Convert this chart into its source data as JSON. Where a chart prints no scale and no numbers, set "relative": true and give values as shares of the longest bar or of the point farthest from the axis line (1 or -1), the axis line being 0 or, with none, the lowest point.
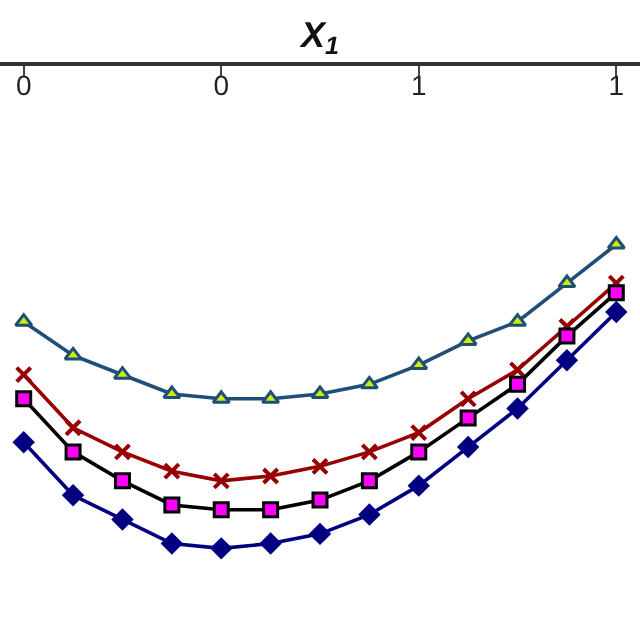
{
  "chart_data": {
    "type": "line",
    "xlabel": "X$_{1}$",
    "relative": true,
    "x": [
      -0.5,
      -0.375,
      -0.25,
      -0.125,
      0,
      0.125,
      0.25,
      0.375,
      0.5,
      0.625,
      0.75,
      0.875,
      1.0
    ],
    "xlim": [
      -0.56,
      1.06
    ],
    "xticks": [
      {
        "value": -0.5,
        "label": "0"
      },
      {
        "value": 0,
        "label": "0"
      },
      {
        "value": 0.5,
        "label": "1"
      },
      {
        "value": 1.0,
        "label": "1"
      }
    ],
    "series": [
      {
        "color": "#1f4e79",
        "marker": "triangle",
        "colors": [
          "#ccee00",
          "#ccee00",
          "#ccee00",
          "#ccee00",
          "#ccee00",
          "#ccee00",
          "#ccee00",
          "#ccee00",
          "#ccee00",
          "#ccee00",
          "#ccee00",
          "#ccee00",
          "#ccee00"
        ],
        "values": [
          -0.53,
          -0.6,
          -0.64,
          -0.68,
          -0.69,
          -0.69,
          -0.68,
          -0.66,
          -0.62,
          -0.57,
          -0.53,
          -0.45,
          -0.37
        ]
      },
      {
        "color": "#990000",
        "marker": "cross",
        "values": [
          -0.64,
          -0.75,
          -0.8,
          -0.84,
          -0.86,
          -0.85,
          -0.83,
          -0.8,
          -0.76,
          -0.69,
          -0.63,
          -0.54,
          -0.45
        ]
      },
      {
        "color": "#000000",
        "marker": "square",
        "colors": [
          "#ff00ff",
          "#ff00ff",
          "#ff00ff",
          "#ff00ff",
          "#ff00ff",
          "#ff00ff",
          "#ff00ff",
          "#ff00ff",
          "#ff00ff",
          "#ff00ff",
          "#ff00ff",
          "#ff00ff",
          "#ff00ff"
        ],
        "values": [
          -0.69,
          -0.8,
          -0.86,
          -0.91,
          -0.92,
          -0.92,
          -0.9,
          -0.86,
          -0.8,
          -0.73,
          -0.66,
          -0.56,
          -0.47
        ]
      },
      {
        "color": "#000080",
        "marker": "diamond",
        "values": [
          -0.78,
          -0.89,
          -0.94,
          -0.99,
          -1.0,
          -0.99,
          -0.97,
          -0.93,
          -0.87,
          -0.79,
          -0.71,
          -0.61,
          -0.51
        ]
      }
    ]
  }
}
